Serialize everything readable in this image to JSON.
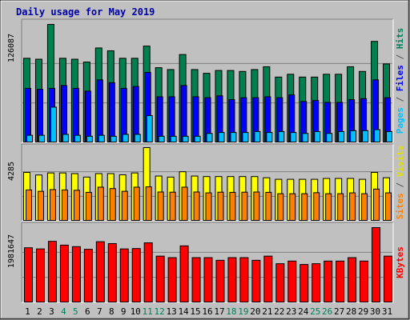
{
  "chart_data": {
    "type": "bar",
    "title": "Daily usage for May 2019",
    "categories": [
      "1",
      "2",
      "3",
      "4",
      "5",
      "6",
      "7",
      "8",
      "9",
      "10",
      "11",
      "12",
      "13",
      "14",
      "15",
      "16",
      "17",
      "18",
      "19",
      "20",
      "21",
      "22",
      "23",
      "24",
      "25",
      "26",
      "27",
      "28",
      "29",
      "30",
      "31"
    ],
    "weekend_days": [
      "4",
      "5",
      "11",
      "12",
      "18",
      "19",
      "25",
      "26"
    ],
    "panels": [
      {
        "id": "top",
        "max_label": "126087",
        "ylim": [
          0,
          126087
        ],
        "labels": [
          {
            "text": "Pages",
            "color": "#00c0ff"
          },
          {
            "text": " / ",
            "color": "#555555"
          },
          {
            "text": "Files",
            "color": "#0000ff"
          },
          {
            "text": " / ",
            "color": "#555555"
          },
          {
            "text": "Hits",
            "color": "#00805a"
          }
        ],
        "series": [
          {
            "name": "Hits",
            "color": "#008050",
            "values": [
              90000,
              89000,
              126087,
              90000,
              89000,
              86000,
              101000,
              98000,
              90000,
              90000,
              103000,
              80000,
              78000,
              94000,
              78000,
              74000,
              77000,
              77000,
              76000,
              78000,
              81000,
              70000,
              73000,
              70000,
              70000,
              73000,
              73000,
              81000,
              76000,
              108000,
              84000
            ]
          },
          {
            "name": "Files",
            "color": "#0000ff",
            "values": [
              58000,
              57000,
              58000,
              61000,
              58000,
              55000,
              67000,
              64000,
              58000,
              60000,
              75000,
              49000,
              49000,
              61000,
              49000,
              48000,
              50000,
              46000,
              48000,
              48000,
              49000,
              48000,
              51000,
              44000,
              45000,
              43000,
              43000,
              46000,
              47000,
              67000,
              48000
            ]
          },
          {
            "name": "Pages",
            "color": "#00c0ff",
            "values": [
              8000,
              8000,
              38000,
              9000,
              8000,
              7000,
              8000,
              7000,
              9000,
              9000,
              29000,
              7000,
              7000,
              7000,
              7000,
              10000,
              11000,
              11000,
              11000,
              12000,
              11000,
              12000,
              11000,
              10000,
              12000,
              10000,
              12000,
              13000,
              13000,
              14000,
              12000
            ]
          }
        ]
      },
      {
        "id": "mid",
        "max_label": "4285",
        "ylim": [
          0,
          4285
        ],
        "labels": [
          {
            "text": "Sites",
            "color": "#ff8000"
          },
          {
            "text": " / ",
            "color": "#555555"
          },
          {
            "text": "Visits",
            "color": "#e0e000"
          }
        ],
        "series": [
          {
            "name": "Visits",
            "color": "#ffff00",
            "values": [
              2840,
              2690,
              2810,
              2810,
              2770,
              2570,
              2770,
              2770,
              2700,
              2810,
              4285,
              2630,
              2570,
              2880,
              2630,
              2600,
              2600,
              2600,
              2600,
              2600,
              2530,
              2440,
              2440,
              2440,
              2440,
              2490,
              2490,
              2490,
              2440,
              2840,
              2530
            ]
          },
          {
            "name": "Sites",
            "color": "#ff8000",
            "values": [
              1820,
              1740,
              1840,
              1820,
              1800,
              1680,
              1980,
              1900,
              1740,
              1980,
              2000,
              1700,
              1690,
              1980,
              1700,
              1650,
              1690,
              1680,
              1690,
              1700,
              1680,
              1600,
              1600,
              1600,
              1660,
              1600,
              1600,
              1650,
              1600,
              1870,
              1650
            ]
          }
        ]
      },
      {
        "id": "bottom",
        "max_label": "1981647",
        "ylim": [
          0,
          1981647
        ],
        "labels": [
          {
            "text": "KBytes",
            "color": "#ff0000"
          }
        ],
        "series": [
          {
            "name": "KBytes",
            "color": "#ff0000",
            "values": [
              1450000,
              1420000,
              1620000,
              1520000,
              1480000,
              1410000,
              1610000,
              1560000,
              1420000,
              1430000,
              1580000,
              1230000,
              1190000,
              1500000,
              1190000,
              1190000,
              1120000,
              1190000,
              1190000,
              1120000,
              1230000,
              1030000,
              1100000,
              1010000,
              1030000,
              1100000,
              1100000,
              1190000,
              1100000,
              1981647,
              1230000
            ]
          }
        ]
      }
    ],
    "colors": {
      "background": "#c0c0c0",
      "plot_area": "#c0c0c0",
      "weekday_label": "#000000",
      "weekend_label": "#00805a",
      "title": "#0000a8"
    }
  }
}
